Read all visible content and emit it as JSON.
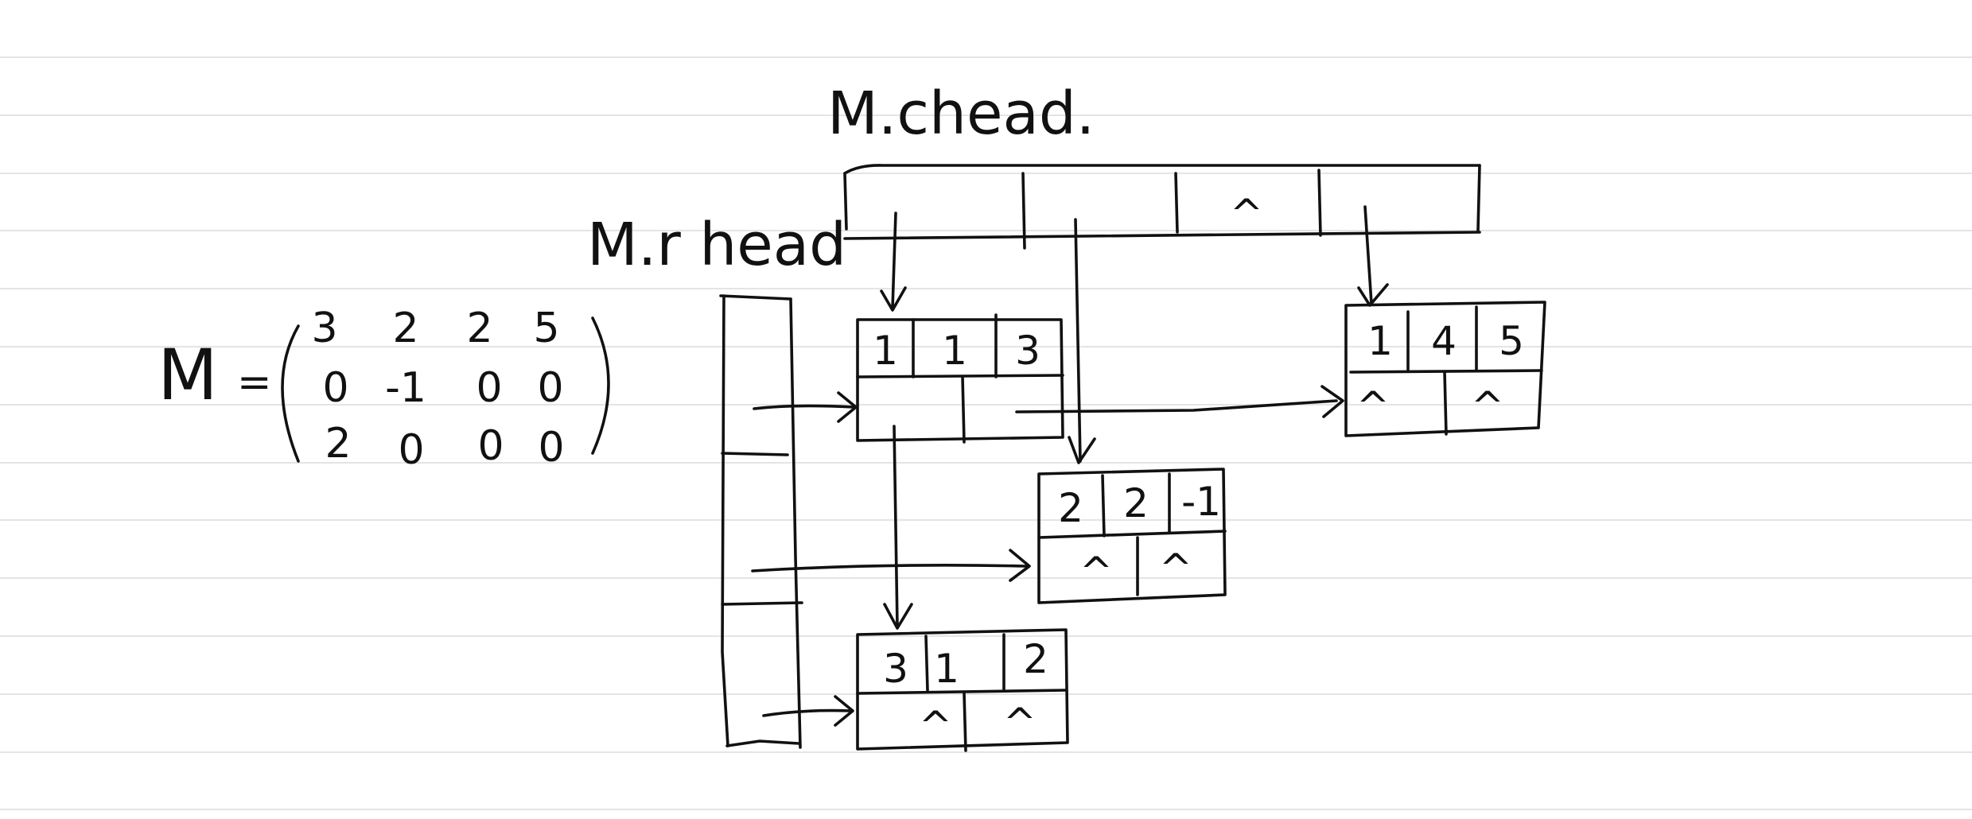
{
  "matrix": {
    "name": "M",
    "equals": "=",
    "rows": [
      [
        "3",
        "2",
        "2",
        "5"
      ],
      [
        "0",
        "-1",
        "0",
        "0"
      ],
      [
        "2",
        "0",
        "0",
        "0"
      ]
    ]
  },
  "labels": {
    "chead": "M.chead.",
    "rhead": "M.r head"
  },
  "chead_cells": [
    "",
    "",
    "",
    "^",
    ""
  ],
  "nodes": {
    "node_1_1": {
      "row": "1",
      "col": "1",
      "val": "3",
      "down": "",
      "right": ""
    },
    "node_1_4": {
      "row": "1",
      "col": "4",
      "val": "5",
      "down": "^",
      "right": "^"
    },
    "node_2_2": {
      "row": "2",
      "col": "2",
      "val": "-1",
      "down": "^",
      "right": "^"
    },
    "node_3_1": {
      "row": "3",
      "col": "1",
      "val": "2",
      "down": "^",
      "right": "^"
    }
  },
  "colors": {
    "ink": "#111111",
    "ruled_line": "#e4e4e4",
    "paper": "#ffffff"
  }
}
